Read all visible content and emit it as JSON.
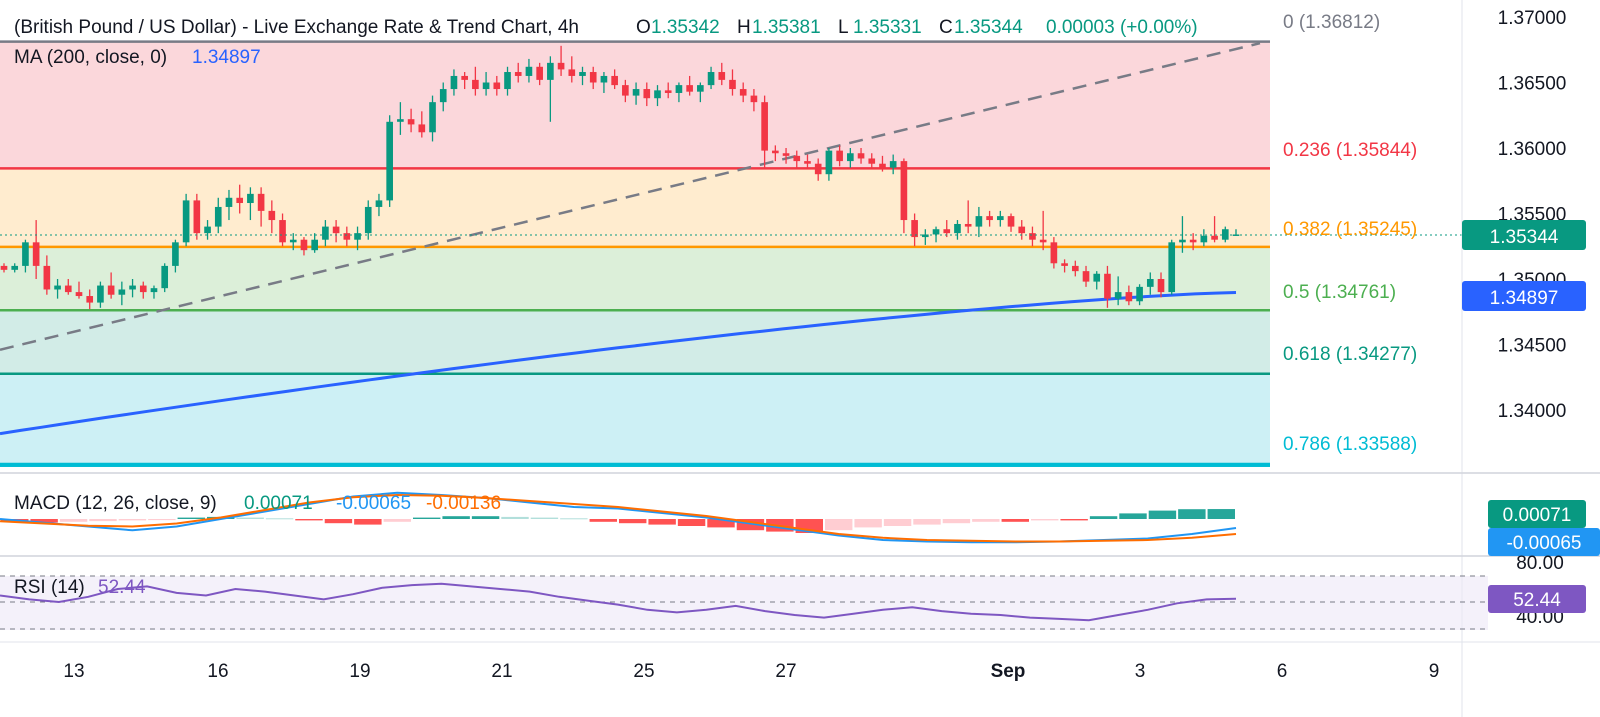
{
  "header": {
    "title": "(British Pound / US Dollar) - Live Exchange Rate & Trend Chart, 4h",
    "ohlc": [
      {
        "key": "O",
        "value": "1.35342"
      },
      {
        "key": "H",
        "value": "1.35381"
      },
      {
        "key": "L",
        "value": "1.35331"
      },
      {
        "key": "C",
        "value": "1.35344"
      }
    ],
    "change": "0.00003 (+0.00%)",
    "ma_label": "MA (200, close, 0)",
    "ma_value": "1.34897"
  },
  "fibonacci": [
    {
      "label": "0 (1.36812)",
      "price": 1.36812,
      "line": "#787b86",
      "fill": null,
      "text": "#787b86"
    },
    {
      "label": "0.236 (1.35844)",
      "price": 1.35844,
      "line": "#f23645",
      "fill": "#fbd7db",
      "text": "#f23645"
    },
    {
      "label": "0.382 (1.35245)",
      "price": 1.35245,
      "line": "#ff9800",
      "fill": "#ffeccf",
      "text": "#ff9800"
    },
    {
      "label": "0.5 (1.34761)",
      "price": 1.34761,
      "line": "#4caf50",
      "fill": "#dcefd9",
      "text": "#4caf50"
    },
    {
      "label": "0.618 (1.34277)",
      "price": 1.34277,
      "line": "#089981",
      "fill": "#d2ece7",
      "text": "#089981"
    },
    {
      "label": "0.786 (1.33588)",
      "price": 1.33588,
      "line": "#00bcd4",
      "fill": "#cdf0f5",
      "text": "#00bcd4"
    }
  ],
  "price_axis": {
    "ticks": [
      "1.37000",
      "1.36500",
      "1.36000",
      "1.35500",
      "1.35000",
      "1.34500",
      "1.34000"
    ],
    "last_price_badge": "1.35344",
    "ma_badge": "1.34897"
  },
  "time_axis": {
    "labels": [
      "13",
      "16",
      "19",
      "21",
      "25",
      "27",
      "Sep",
      "3",
      "6",
      "9"
    ]
  },
  "macd": {
    "label": "MACD (12, 26, close, 9)",
    "value1": "0.00071",
    "value2": "-0.00065",
    "value3": "-0.00136",
    "badge_hist": "0.00071",
    "badge_macd": "-0.00065",
    "axis_partial": "80.00"
  },
  "rsi": {
    "label": "RSI (14)",
    "value": "52.44",
    "badge": "52.44",
    "axis_low": "40.00"
  },
  "colors": {
    "up": "#089981",
    "down": "#f23645",
    "ma": "#2962ff",
    "trendline": "#787b86",
    "macd_line": "#2196f3",
    "signal_line": "#ff6d00",
    "rsi_line": "#7e57c2"
  },
  "chart_data": {
    "type": "candlestick",
    "timeframe": "4h",
    "ylim": [
      1.3355,
      1.3705
    ],
    "candles": [
      [
        1.351,
        1.3512,
        1.3505,
        1.3507
      ],
      [
        1.3507,
        1.3512,
        1.3505,
        1.351
      ],
      [
        1.351,
        1.353,
        1.3505,
        1.3528
      ],
      [
        1.3528,
        1.3545,
        1.35,
        1.351
      ],
      [
        1.351,
        1.3518,
        1.3488,
        1.3492
      ],
      [
        1.3492,
        1.35,
        1.3485,
        1.3495
      ],
      [
        1.3495,
        1.35,
        1.3488,
        1.349
      ],
      [
        1.349,
        1.3498,
        1.3485,
        1.3487
      ],
      [
        1.3487,
        1.3492,
        1.3477,
        1.3482
      ],
      [
        1.3482,
        1.3498,
        1.3478,
        1.3495
      ],
      [
        1.3495,
        1.3505,
        1.3485,
        1.3488
      ],
      [
        1.3488,
        1.3498,
        1.348,
        1.3492
      ],
      [
        1.3492,
        1.35,
        1.3486,
        1.3495
      ],
      [
        1.3495,
        1.3498,
        1.3485,
        1.349
      ],
      [
        1.349,
        1.3495,
        1.3485,
        1.3493
      ],
      [
        1.3493,
        1.3512,
        1.349,
        1.351
      ],
      [
        1.351,
        1.353,
        1.3505,
        1.3528
      ],
      [
        1.3528,
        1.3565,
        1.3525,
        1.356
      ],
      [
        1.356,
        1.3565,
        1.353,
        1.3535
      ],
      [
        1.3535,
        1.3545,
        1.353,
        1.354
      ],
      [
        1.354,
        1.3562,
        1.3535,
        1.3555
      ],
      [
        1.3555,
        1.3568,
        1.3545,
        1.3562
      ],
      [
        1.3562,
        1.3572,
        1.355,
        1.3558
      ],
      [
        1.3558,
        1.357,
        1.3545,
        1.3565
      ],
      [
        1.3565,
        1.357,
        1.354,
        1.3552
      ],
      [
        1.3552,
        1.356,
        1.3535,
        1.3545
      ],
      [
        1.3545,
        1.355,
        1.3525,
        1.3528
      ],
      [
        1.3528,
        1.3535,
        1.3522,
        1.353
      ],
      [
        1.353,
        1.3532,
        1.3518,
        1.3522
      ],
      [
        1.3522,
        1.3535,
        1.352,
        1.353
      ],
      [
        1.353,
        1.3545,
        1.3525,
        1.354
      ],
      [
        1.354,
        1.3545,
        1.3528,
        1.3535
      ],
      [
        1.3535,
        1.354,
        1.3525,
        1.353
      ],
      [
        1.353,
        1.354,
        1.3522,
        1.3535
      ],
      [
        1.3535,
        1.356,
        1.353,
        1.3555
      ],
      [
        1.3555,
        1.3565,
        1.3548,
        1.356
      ],
      [
        1.356,
        1.3625,
        1.3555,
        1.362
      ],
      [
        1.362,
        1.3635,
        1.361,
        1.3622
      ],
      [
        1.3622,
        1.363,
        1.3612,
        1.3618
      ],
      [
        1.3618,
        1.3628,
        1.3608,
        1.3612
      ],
      [
        1.3612,
        1.364,
        1.3605,
        1.3635
      ],
      [
        1.3635,
        1.365,
        1.3628,
        1.3645
      ],
      [
        1.3645,
        1.366,
        1.364,
        1.3655
      ],
      [
        1.3655,
        1.3658,
        1.3645,
        1.3652
      ],
      [
        1.3652,
        1.3662,
        1.364,
        1.3645
      ],
      [
        1.3645,
        1.3658,
        1.364,
        1.365
      ],
      [
        1.365,
        1.3655,
        1.364,
        1.3645
      ],
      [
        1.3645,
        1.3662,
        1.364,
        1.3658
      ],
      [
        1.3658,
        1.3665,
        1.365,
        1.3655
      ],
      [
        1.3655,
        1.3668,
        1.365,
        1.3662
      ],
      [
        1.3662,
        1.3665,
        1.3648,
        1.3652
      ],
      [
        1.3652,
        1.367,
        1.362,
        1.3665
      ],
      [
        1.3665,
        1.3678,
        1.3655,
        1.366
      ],
      [
        1.366,
        1.367,
        1.365,
        1.3655
      ],
      [
        1.3655,
        1.3662,
        1.3648,
        1.3658
      ],
      [
        1.3658,
        1.3662,
        1.3645,
        1.365
      ],
      [
        1.365,
        1.3658,
        1.3642,
        1.3655
      ],
      [
        1.3655,
        1.366,
        1.3645,
        1.3648
      ],
      [
        1.3648,
        1.3652,
        1.3635,
        1.364
      ],
      [
        1.364,
        1.365,
        1.3633,
        1.3645
      ],
      [
        1.3645,
        1.365,
        1.3632,
        1.3638
      ],
      [
        1.3638,
        1.3648,
        1.3632,
        1.3644
      ],
      [
        1.3644,
        1.365,
        1.3638,
        1.3642
      ],
      [
        1.3642,
        1.365,
        1.3635,
        1.3648
      ],
      [
        1.3648,
        1.3655,
        1.364,
        1.3643
      ],
      [
        1.3643,
        1.365,
        1.3635,
        1.3648
      ],
      [
        1.3648,
        1.3662,
        1.3645,
        1.3658
      ],
      [
        1.3658,
        1.3665,
        1.3648,
        1.3652
      ],
      [
        1.3652,
        1.366,
        1.364,
        1.3645
      ],
      [
        1.3645,
        1.365,
        1.3635,
        1.364
      ],
      [
        1.364,
        1.3645,
        1.3628,
        1.3635
      ],
      [
        1.3635,
        1.364,
        1.3585,
        1.3598
      ],
      [
        1.3598,
        1.3602,
        1.359,
        1.3596
      ],
      [
        1.3596,
        1.36,
        1.3588,
        1.3594
      ],
      [
        1.3594,
        1.3598,
        1.3585,
        1.359
      ],
      [
        1.359,
        1.3595,
        1.3584,
        1.3588
      ],
      [
        1.3588,
        1.3592,
        1.3575,
        1.358
      ],
      [
        1.358,
        1.36,
        1.3575,
        1.3598
      ],
      [
        1.3598,
        1.3602,
        1.3586,
        1.359
      ],
      [
        1.359,
        1.36,
        1.3585,
        1.3596
      ],
      [
        1.3596,
        1.36,
        1.3588,
        1.3592
      ],
      [
        1.3592,
        1.3596,
        1.3585,
        1.3588
      ],
      [
        1.3588,
        1.3594,
        1.3582,
        1.3585
      ],
      [
        1.3585,
        1.3595,
        1.358,
        1.359
      ],
      [
        1.359,
        1.3592,
        1.3535,
        1.3545
      ],
      [
        1.3545,
        1.355,
        1.3525,
        1.3532
      ],
      [
        1.3532,
        1.3538,
        1.3526,
        1.3534
      ],
      [
        1.3534,
        1.354,
        1.3528,
        1.3538
      ],
      [
        1.3538,
        1.3545,
        1.3532,
        1.3535
      ],
      [
        1.3535,
        1.3545,
        1.353,
        1.3542
      ],
      [
        1.3542,
        1.356,
        1.3535,
        1.354
      ],
      [
        1.354,
        1.3555,
        1.3532,
        1.3548
      ],
      [
        1.3548,
        1.3552,
        1.354,
        1.3545
      ],
      [
        1.3545,
        1.3552,
        1.354,
        1.3548
      ],
      [
        1.3548,
        1.355,
        1.3536,
        1.354
      ],
      [
        1.354,
        1.3545,
        1.353,
        1.3535
      ],
      [
        1.3535,
        1.354,
        1.3525,
        1.353
      ],
      [
        1.353,
        1.3552,
        1.3522,
        1.3528
      ],
      [
        1.3528,
        1.3532,
        1.3508,
        1.3512
      ],
      [
        1.3512,
        1.3515,
        1.3505,
        1.351
      ],
      [
        1.351,
        1.3514,
        1.3502,
        1.3506
      ],
      [
        1.3506,
        1.351,
        1.3494,
        1.3498
      ],
      [
        1.3498,
        1.3506,
        1.3492,
        1.3504
      ],
      [
        1.3504,
        1.351,
        1.3478,
        1.3485
      ],
      [
        1.3485,
        1.3502,
        1.348,
        1.349
      ],
      [
        1.349,
        1.3495,
        1.348,
        1.3483
      ],
      [
        1.3483,
        1.3496,
        1.348,
        1.3494
      ],
      [
        1.3494,
        1.3505,
        1.3488,
        1.35
      ],
      [
        1.35,
        1.3505,
        1.3486,
        1.349
      ],
      [
        1.349,
        1.353,
        1.3488,
        1.3528
      ],
      [
        1.3528,
        1.3548,
        1.352,
        1.353
      ],
      [
        1.353,
        1.3535,
        1.3522,
        1.3528
      ],
      [
        1.3528,
        1.3538,
        1.3525,
        1.3533
      ],
      [
        1.3533,
        1.3548,
        1.3528,
        1.353
      ],
      [
        1.353,
        1.354,
        1.3528,
        1.3538
      ],
      [
        1.3534,
        1.3538,
        1.3533,
        1.3534
      ]
    ],
    "ma200": {
      "start": 1.3382,
      "end": 1.34897
    },
    "trendline": {
      "from": {
        "index": 0,
        "price": 1.3446
      },
      "to": {
        "index": 125,
        "price": 1.368
      }
    },
    "macd_hist": [
      -0.0002,
      -0.00025,
      -0.0002,
      -0.00015,
      -0.0001,
      -8e-05,
      0.0001,
      0.00015,
      0.0001,
      5e-05,
      -0.0001,
      -0.0003,
      -0.0004,
      -0.0002,
      0.0001,
      0.0002,
      0.0002,
      0.00015,
      0.0001,
      5e-05,
      -0.0002,
      -0.0003,
      -0.0004,
      -0.0005,
      -0.0006,
      -0.0008,
      -0.0009,
      -0.001,
      -0.0008,
      -0.0006,
      -0.0005,
      -0.0004,
      -0.0003,
      -0.0002,
      -0.0002,
      -0.0001,
      -0.0001,
      0.0002,
      0.0004,
      0.0006,
      0.0007,
      0.00071
    ],
    "rsi": [
      55,
      52,
      50,
      54,
      60,
      62,
      57,
      55,
      60,
      58,
      55,
      52,
      56,
      61,
      63,
      64,
      62,
      60,
      58,
      54,
      51,
      48,
      44,
      42,
      44,
      47,
      43,
      40,
      38,
      41,
      44,
      46,
      43,
      41,
      40,
      38,
      37,
      36,
      40,
      44,
      49,
      52,
      52.44
    ]
  }
}
